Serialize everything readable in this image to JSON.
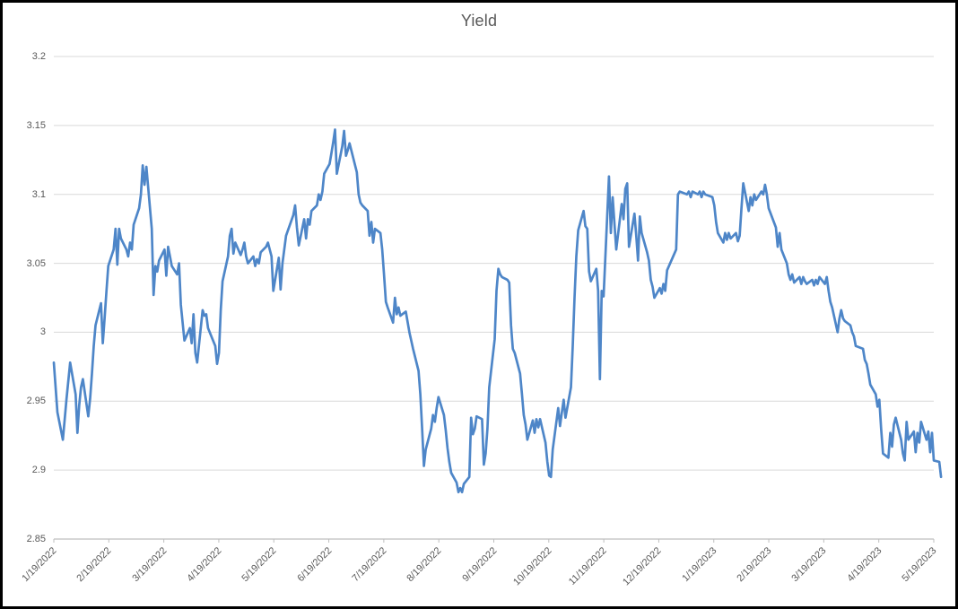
{
  "window": {
    "background_color": "#ffffff",
    "border_color": "#000000"
  },
  "chart_data": {
    "type": "line",
    "title": "Yield",
    "legend": "none",
    "grid": "horizontal",
    "series_name": "Yield",
    "series_color": "#4e86c8",
    "gridline_color": "#d9d9d9",
    "axis_line_color": "#bfbfbf",
    "label_color": "#595959",
    "y_axis": {
      "min": 2.85,
      "max": 3.2,
      "tick_interval": 0.05,
      "tick_labels": [
        "3.2",
        "3.15",
        "3.1",
        "3.05",
        "3",
        "2.95",
        "2.9",
        "2.85"
      ]
    },
    "x_axis": {
      "tick_labels": [
        "1/19/2022",
        "2/19/2022",
        "3/19/2022",
        "4/19/2022",
        "5/19/2022",
        "6/19/2022",
        "7/19/2022",
        "8/19/2022",
        "9/19/2022",
        "10/19/2022",
        "11/19/2022",
        "12/19/2022",
        "1/19/2023",
        "2/19/2023",
        "3/19/2023",
        "4/19/2023",
        "5/19/2023"
      ],
      "label_rotation_deg": 45
    },
    "points": [
      [
        "1/19/2022",
        2.978
      ],
      [
        "1/20/2022",
        2.96
      ],
      [
        "1/21/2022",
        2.942
      ],
      [
        "1/24/2022",
        2.922
      ],
      [
        "1/26/2022",
        2.952
      ],
      [
        "1/28/2022",
        2.978
      ],
      [
        "1/31/2022",
        2.955
      ],
      [
        "2/1/2022",
        2.927
      ],
      [
        "2/2/2022",
        2.947
      ],
      [
        "2/3/2022",
        2.96
      ],
      [
        "2/4/2022",
        2.966
      ],
      [
        "2/7/2022",
        2.939
      ],
      [
        "2/8/2022",
        2.952
      ],
      [
        "2/9/2022",
        2.97
      ],
      [
        "2/10/2022",
        2.99
      ],
      [
        "2/11/2022",
        3.005
      ],
      [
        "2/14/2022",
        3.021
      ],
      [
        "2/15/2022",
        2.992
      ],
      [
        "2/16/2022",
        3.01
      ],
      [
        "2/17/2022",
        3.03
      ],
      [
        "2/18/2022",
        3.048
      ],
      [
        "2/21/2022",
        3.06
      ],
      [
        "2/22/2022",
        3.075
      ],
      [
        "2/23/2022",
        3.049
      ],
      [
        "2/24/2022",
        3.075
      ],
      [
        "2/25/2022",
        3.068
      ],
      [
        "2/28/2022",
        3.06
      ],
      [
        "3/1/2022",
        3.055
      ],
      [
        "3/2/2022",
        3.065
      ],
      [
        "3/3/2022",
        3.06
      ],
      [
        "3/4/2022",
        3.078
      ],
      [
        "3/7/2022",
        3.09
      ],
      [
        "3/8/2022",
        3.1
      ],
      [
        "3/9/2022",
        3.121
      ],
      [
        "3/10/2022",
        3.107
      ],
      [
        "3/11/2022",
        3.12
      ],
      [
        "3/14/2022",
        3.075
      ],
      [
        "3/15/2022",
        3.027
      ],
      [
        "3/16/2022",
        3.048
      ],
      [
        "3/17/2022",
        3.044
      ],
      [
        "3/18/2022",
        3.052
      ],
      [
        "3/21/2022",
        3.06
      ],
      [
        "3/22/2022",
        3.041
      ],
      [
        "3/23/2022",
        3.062
      ],
      [
        "3/24/2022",
        3.055
      ],
      [
        "3/25/2022",
        3.048
      ],
      [
        "3/28/2022",
        3.042
      ],
      [
        "3/29/2022",
        3.05
      ],
      [
        "3/30/2022",
        3.02
      ],
      [
        "3/31/2022",
        3.007
      ],
      [
        "4/1/2022",
        2.994
      ],
      [
        "4/4/2022",
        3.003
      ],
      [
        "4/5/2022",
        2.992
      ],
      [
        "4/6/2022",
        3.013
      ],
      [
        "4/7/2022",
        2.985
      ],
      [
        "4/8/2022",
        2.978
      ],
      [
        "4/11/2022",
        3.016
      ],
      [
        "4/12/2022",
        3.012
      ],
      [
        "4/13/2022",
        3.013
      ],
      [
        "4/14/2022",
        3.003
      ],
      [
        "4/18/2022",
        2.99
      ],
      [
        "4/19/2022",
        2.977
      ],
      [
        "4/20/2022",
        2.985
      ],
      [
        "4/21/2022",
        3.016
      ],
      [
        "4/22/2022",
        3.037
      ],
      [
        "4/25/2022",
        3.055
      ],
      [
        "4/26/2022",
        3.07
      ],
      [
        "4/27/2022",
        3.075
      ],
      [
        "4/28/2022",
        3.057
      ],
      [
        "4/29/2022",
        3.065
      ],
      [
        "5/2/2022",
        3.056
      ],
      [
        "5/3/2022",
        3.06
      ],
      [
        "5/4/2022",
        3.065
      ],
      [
        "5/5/2022",
        3.055
      ],
      [
        "5/6/2022",
        3.05
      ],
      [
        "5/9/2022",
        3.055
      ],
      [
        "5/10/2022",
        3.048
      ],
      [
        "5/11/2022",
        3.053
      ],
      [
        "5/12/2022",
        3.05
      ],
      [
        "5/13/2022",
        3.058
      ],
      [
        "5/16/2022",
        3.062
      ],
      [
        "5/17/2022",
        3.065
      ],
      [
        "5/18/2022",
        3.06
      ],
      [
        "5/19/2022",
        3.055
      ],
      [
        "5/20/2022",
        3.03
      ],
      [
        "5/23/2022",
        3.054
      ],
      [
        "5/24/2022",
        3.031
      ],
      [
        "5/25/2022",
        3.05
      ],
      [
        "5/26/2022",
        3.06
      ],
      [
        "5/27/2022",
        3.07
      ],
      [
        "5/31/2022",
        3.085
      ],
      [
        "6/1/2022",
        3.092
      ],
      [
        "6/2/2022",
        3.076
      ],
      [
        "6/3/2022",
        3.063
      ],
      [
        "6/6/2022",
        3.082
      ],
      [
        "6/7/2022",
        3.068
      ],
      [
        "6/8/2022",
        3.082
      ],
      [
        "6/9/2022",
        3.078
      ],
      [
        "6/10/2022",
        3.088
      ],
      [
        "6/13/2022",
        3.092
      ],
      [
        "6/14/2022",
        3.1
      ],
      [
        "6/15/2022",
        3.096
      ],
      [
        "6/16/2022",
        3.102
      ],
      [
        "6/17/2022",
        3.115
      ],
      [
        "6/20/2022",
        3.122
      ],
      [
        "6/21/2022",
        3.13
      ],
      [
        "6/22/2022",
        3.138
      ],
      [
        "6/23/2022",
        3.147
      ],
      [
        "6/24/2022",
        3.115
      ],
      [
        "6/27/2022",
        3.135
      ],
      [
        "6/28/2022",
        3.146
      ],
      [
        "6/29/2022",
        3.128
      ],
      [
        "6/30/2022",
        3.132
      ],
      [
        "7/1/2022",
        3.137
      ],
      [
        "7/5/2022",
        3.116
      ],
      [
        "7/6/2022",
        3.1
      ],
      [
        "7/7/2022",
        3.094
      ],
      [
        "7/8/2022",
        3.092
      ],
      [
        "7/11/2022",
        3.088
      ],
      [
        "7/12/2022",
        3.07
      ],
      [
        "7/13/2022",
        3.08
      ],
      [
        "7/14/2022",
        3.065
      ],
      [
        "7/15/2022",
        3.075
      ],
      [
        "7/18/2022",
        3.072
      ],
      [
        "7/19/2022",
        3.06
      ],
      [
        "7/20/2022",
        3.042
      ],
      [
        "7/21/2022",
        3.022
      ],
      [
        "7/22/2022",
        3.018
      ],
      [
        "7/25/2022",
        3.007
      ],
      [
        "7/26/2022",
        3.025
      ],
      [
        "7/27/2022",
        3.013
      ],
      [
        "7/28/2022",
        3.018
      ],
      [
        "7/29/2022",
        3.012
      ],
      [
        "8/1/2022",
        3.015
      ],
      [
        "8/3/2022",
        3.0
      ],
      [
        "8/5/2022",
        2.988
      ],
      [
        "8/8/2022",
        2.972
      ],
      [
        "8/9/2022",
        2.955
      ],
      [
        "8/10/2022",
        2.93
      ],
      [
        "8/11/2022",
        2.903
      ],
      [
        "8/12/2022",
        2.915
      ],
      [
        "8/15/2022",
        2.93
      ],
      [
        "8/16/2022",
        2.94
      ],
      [
        "8/17/2022",
        2.935
      ],
      [
        "8/18/2022",
        2.945
      ],
      [
        "8/19/2022",
        2.953
      ],
      [
        "8/22/2022",
        2.94
      ],
      [
        "8/23/2022",
        2.929
      ],
      [
        "8/24/2022",
        2.916
      ],
      [
        "8/25/2022",
        2.906
      ],
      [
        "8/26/2022",
        2.898
      ],
      [
        "8/29/2022",
        2.891
      ],
      [
        "8/30/2022",
        2.884
      ],
      [
        "8/31/2022",
        2.887
      ],
      [
        "9/1/2022",
        2.884
      ],
      [
        "9/2/2022",
        2.89
      ],
      [
        "9/5/2022",
        2.895
      ],
      [
        "9/6/2022",
        2.938
      ],
      [
        "9/7/2022",
        2.926
      ],
      [
        "9/8/2022",
        2.93
      ],
      [
        "9/9/2022",
        2.939
      ],
      [
        "9/12/2022",
        2.937
      ],
      [
        "9/13/2022",
        2.904
      ],
      [
        "9/14/2022",
        2.912
      ],
      [
        "9/15/2022",
        2.93
      ],
      [
        "9/16/2022",
        2.96
      ],
      [
        "9/19/2022",
        2.995
      ],
      [
        "9/20/2022",
        3.03
      ],
      [
        "9/21/2022",
        3.046
      ],
      [
        "9/22/2022",
        3.042
      ],
      [
        "9/23/2022",
        3.04
      ],
      [
        "9/26/2022",
        3.038
      ],
      [
        "9/27/2022",
        3.036
      ],
      [
        "9/28/2022",
        3.005
      ],
      [
        "9/29/2022",
        2.988
      ],
      [
        "9/30/2022",
        2.985
      ],
      [
        "10/3/2022",
        2.97
      ],
      [
        "10/4/2022",
        2.955
      ],
      [
        "10/5/2022",
        2.94
      ],
      [
        "10/6/2022",
        2.933
      ],
      [
        "10/7/2022",
        2.922
      ],
      [
        "10/10/2022",
        2.936
      ],
      [
        "10/11/2022",
        2.927
      ],
      [
        "10/12/2022",
        2.937
      ],
      [
        "10/13/2022",
        2.931
      ],
      [
        "10/14/2022",
        2.937
      ],
      [
        "10/17/2022",
        2.92
      ],
      [
        "10/18/2022",
        2.906
      ],
      [
        "10/19/2022",
        2.896
      ],
      [
        "10/20/2022",
        2.895
      ],
      [
        "10/21/2022",
        2.915
      ],
      [
        "10/24/2022",
        2.945
      ],
      [
        "10/25/2022",
        2.932
      ],
      [
        "10/26/2022",
        2.942
      ],
      [
        "10/27/2022",
        2.951
      ],
      [
        "10/28/2022",
        2.938
      ],
      [
        "10/31/2022",
        2.96
      ],
      [
        "11/1/2022",
        2.99
      ],
      [
        "11/2/2022",
        3.025
      ],
      [
        "11/3/2022",
        3.055
      ],
      [
        "11/4/2022",
        3.074
      ],
      [
        "11/7/2022",
        3.088
      ],
      [
        "11/8/2022",
        3.077
      ],
      [
        "11/9/2022",
        3.075
      ],
      [
        "11/10/2022",
        3.044
      ],
      [
        "11/11/2022",
        3.037
      ],
      [
        "11/14/2022",
        3.046
      ],
      [
        "11/15/2022",
        3.03
      ],
      [
        "11/16/2022",
        2.966
      ],
      [
        "11/17/2022",
        3.03
      ],
      [
        "11/18/2022",
        3.026
      ],
      [
        "11/21/2022",
        3.113
      ],
      [
        "11/22/2022",
        3.072
      ],
      [
        "11/23/2022",
        3.098
      ],
      [
        "11/25/2022",
        3.06
      ],
      [
        "11/28/2022",
        3.093
      ],
      [
        "11/29/2022",
        3.082
      ],
      [
        "11/30/2022",
        3.104
      ],
      [
        "12/1/2022",
        3.108
      ],
      [
        "12/2/2022",
        3.062
      ],
      [
        "12/5/2022",
        3.086
      ],
      [
        "12/6/2022",
        3.07
      ],
      [
        "12/7/2022",
        3.052
      ],
      [
        "12/8/2022",
        3.084
      ],
      [
        "12/9/2022",
        3.072
      ],
      [
        "12/12/2022",
        3.058
      ],
      [
        "12/13/2022",
        3.052
      ],
      [
        "12/14/2022",
        3.038
      ],
      [
        "12/15/2022",
        3.033
      ],
      [
        "12/16/2022",
        3.025
      ],
      [
        "12/19/2022",
        3.032
      ],
      [
        "12/20/2022",
        3.028
      ],
      [
        "12/21/2022",
        3.035
      ],
      [
        "12/22/2022",
        3.03
      ],
      [
        "12/23/2022",
        3.045
      ],
      [
        "12/27/2022",
        3.057
      ],
      [
        "12/28/2022",
        3.06
      ],
      [
        "12/29/2022",
        3.1
      ],
      [
        "12/30/2022",
        3.102
      ],
      [
        "1/3/2023",
        3.1
      ],
      [
        "1/4/2023",
        3.102
      ],
      [
        "1/5/2023",
        3.098
      ],
      [
        "1/6/2023",
        3.102
      ],
      [
        "1/9/2023",
        3.1
      ],
      [
        "1/10/2023",
        3.102
      ],
      [
        "1/11/2023",
        3.098
      ],
      [
        "1/12/2023",
        3.102
      ],
      [
        "1/13/2023",
        3.1
      ],
      [
        "1/17/2023",
        3.098
      ],
      [
        "1/18/2023",
        3.092
      ],
      [
        "1/19/2023",
        3.08
      ],
      [
        "1/20/2023",
        3.072
      ],
      [
        "1/23/2023",
        3.065
      ],
      [
        "1/24/2023",
        3.072
      ],
      [
        "1/25/2023",
        3.067
      ],
      [
        "1/26/2023",
        3.072
      ],
      [
        "1/27/2023",
        3.068
      ],
      [
        "1/30/2023",
        3.072
      ],
      [
        "1/31/2023",
        3.066
      ],
      [
        "2/1/2023",
        3.07
      ],
      [
        "2/2/2023",
        3.09
      ],
      [
        "2/3/2023",
        3.108
      ],
      [
        "2/6/2023",
        3.088
      ],
      [
        "2/7/2023",
        3.098
      ],
      [
        "2/8/2023",
        3.092
      ],
      [
        "2/9/2023",
        3.1
      ],
      [
        "2/10/2023",
        3.096
      ],
      [
        "2/13/2023",
        3.102
      ],
      [
        "2/14/2023",
        3.1
      ],
      [
        "2/15/2023",
        3.107
      ],
      [
        "2/16/2023",
        3.1
      ],
      [
        "2/17/2023",
        3.09
      ],
      [
        "2/21/2023",
        3.076
      ],
      [
        "2/22/2023",
        3.062
      ],
      [
        "2/23/2023",
        3.072
      ],
      [
        "2/24/2023",
        3.06
      ],
      [
        "2/27/2023",
        3.05
      ],
      [
        "2/28/2023",
        3.042
      ],
      [
        "3/1/2023",
        3.038
      ],
      [
        "3/2/2023",
        3.042
      ],
      [
        "3/3/2023",
        3.036
      ],
      [
        "3/6/2023",
        3.04
      ],
      [
        "3/7/2023",
        3.035
      ],
      [
        "3/8/2023",
        3.04
      ],
      [
        "3/9/2023",
        3.037
      ],
      [
        "3/10/2023",
        3.035
      ],
      [
        "3/13/2023",
        3.038
      ],
      [
        "3/14/2023",
        3.034
      ],
      [
        "3/15/2023",
        3.038
      ],
      [
        "3/16/2023",
        3.035
      ],
      [
        "3/17/2023",
        3.04
      ],
      [
        "3/20/2023",
        3.035
      ],
      [
        "3/21/2023",
        3.04
      ],
      [
        "3/22/2023",
        3.03
      ],
      [
        "3/23/2023",
        3.022
      ],
      [
        "3/24/2023",
        3.018
      ],
      [
        "3/27/2023",
        3.0
      ],
      [
        "3/28/2023",
        3.01
      ],
      [
        "3/29/2023",
        3.016
      ],
      [
        "3/30/2023",
        3.01
      ],
      [
        "3/31/2023",
        3.008
      ],
      [
        "4/3/2023",
        3.005
      ],
      [
        "4/4/2023",
        3.0
      ],
      [
        "4/5/2023",
        2.997
      ],
      [
        "4/6/2023",
        2.99
      ],
      [
        "4/10/2023",
        2.988
      ],
      [
        "4/11/2023",
        2.98
      ],
      [
        "4/12/2023",
        2.977
      ],
      [
        "4/13/2023",
        2.97
      ],
      [
        "4/14/2023",
        2.962
      ],
      [
        "4/17/2023",
        2.955
      ],
      [
        "4/18/2023",
        2.946
      ],
      [
        "4/19/2023",
        2.951
      ],
      [
        "4/20/2023",
        2.93
      ],
      [
        "4/21/2023",
        2.912
      ],
      [
        "4/24/2023",
        2.909
      ],
      [
        "4/25/2023",
        2.927
      ],
      [
        "4/26/2023",
        2.917
      ],
      [
        "4/27/2023",
        2.933
      ],
      [
        "4/28/2023",
        2.938
      ],
      [
        "5/1/2023",
        2.922
      ],
      [
        "5/2/2023",
        2.912
      ],
      [
        "5/3/2023",
        2.907
      ],
      [
        "5/4/2023",
        2.935
      ],
      [
        "5/5/2023",
        2.922
      ],
      [
        "5/8/2023",
        2.928
      ],
      [
        "5/9/2023",
        2.913
      ],
      [
        "5/10/2023",
        2.927
      ],
      [
        "5/11/2023",
        2.92
      ],
      [
        "5/12/2023",
        2.935
      ],
      [
        "5/15/2023",
        2.922
      ],
      [
        "5/16/2023",
        2.928
      ],
      [
        "5/17/2023",
        2.913
      ],
      [
        "5/18/2023",
        2.927
      ],
      [
        "5/19/2023",
        2.907
      ],
      [
        "5/22/2023",
        2.906
      ],
      [
        "5/23/2023",
        2.895
      ]
    ]
  }
}
